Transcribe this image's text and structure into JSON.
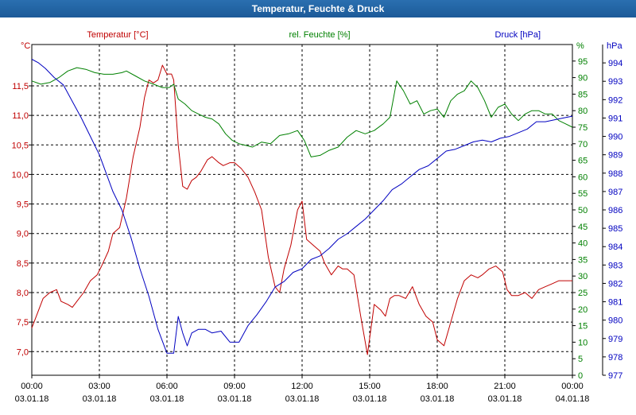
{
  "window": {
    "title": "Temperatur, Feuchte & Druck"
  },
  "chart_data": {
    "type": "line",
    "title": "Temperatur, Feuchte & Druck",
    "x_labels": [
      {
        "time": "00:00",
        "date": "03.01.18",
        "hour": 0
      },
      {
        "time": "03:00",
        "date": "03.01.18",
        "hour": 3
      },
      {
        "time": "06:00",
        "date": "03.01.18",
        "hour": 6
      },
      {
        "time": "09:00",
        "date": "03.01.18",
        "hour": 9
      },
      {
        "time": "12:00",
        "date": "03.01.18",
        "hour": 12
      },
      {
        "time": "15:00",
        "date": "03.01.18",
        "hour": 15
      },
      {
        "time": "18:00",
        "date": "03.01.18",
        "hour": 18
      },
      {
        "time": "21:00",
        "date": "03.01.18",
        "hour": 21
      },
      {
        "time": "00:00",
        "date": "04.01.18",
        "hour": 24
      }
    ],
    "xlim": [
      0,
      24
    ],
    "axes": {
      "temperature": {
        "title": "Temperatur [°C]",
        "unit_label": "°C",
        "color": "#c00000",
        "ylim": [
          6.6,
          12.2
        ],
        "ticks": [
          "7,0",
          "7,5",
          "8,0",
          "8,5",
          "9,0",
          "9,5",
          "10,0",
          "10,5",
          "11,0",
          "11,5"
        ],
        "tick_values": [
          7.0,
          7.5,
          8.0,
          8.5,
          9.0,
          9.5,
          10.0,
          10.5,
          11.0,
          11.5
        ]
      },
      "humidity": {
        "title": "rel. Feuchte [%]",
        "unit_label": "%",
        "color": "#008000",
        "ylim": [
          0,
          100
        ],
        "ticks": [
          "0",
          "5",
          "10",
          "15",
          "20",
          "25",
          "30",
          "35",
          "40",
          "45",
          "50",
          "55",
          "60",
          "65",
          "70",
          "75",
          "80",
          "85",
          "90",
          "95"
        ],
        "tick_values": [
          0,
          5,
          10,
          15,
          20,
          25,
          30,
          35,
          40,
          45,
          50,
          55,
          60,
          65,
          70,
          75,
          80,
          85,
          90,
          95
        ]
      },
      "pressure": {
        "title": "Druck [hPa]",
        "unit_label": "hPa",
        "color": "#0000c0",
        "ylim": [
          977,
          995
        ],
        "ticks": [
          "977",
          "978",
          "979",
          "980",
          "981",
          "982",
          "983",
          "984",
          "985",
          "986",
          "987",
          "988",
          "989",
          "990",
          "991",
          "992",
          "993",
          "994"
        ],
        "tick_values": [
          977,
          978,
          979,
          980,
          981,
          982,
          983,
          984,
          985,
          986,
          987,
          988,
          989,
          990,
          991,
          992,
          993,
          994
        ]
      }
    },
    "series": [
      {
        "name": "Temperatur",
        "axis": "temperature",
        "color": "#c00000",
        "x": [
          0,
          0.3,
          0.5,
          0.8,
          1.1,
          1.3,
          1.6,
          1.8,
          2.0,
          2.3,
          2.6,
          2.9,
          3.1,
          3.4,
          3.6,
          3.9,
          4.2,
          4.5,
          4.8,
          5.0,
          5.2,
          5.4,
          5.6,
          5.8,
          6.0,
          6.2,
          6.3,
          6.5,
          6.7,
          6.9,
          7.1,
          7.3,
          7.5,
          7.8,
          8.0,
          8.3,
          8.5,
          8.8,
          9.0,
          9.3,
          9.6,
          9.9,
          10.2,
          10.5,
          10.8,
          11.0,
          11.2,
          11.5,
          11.8,
          12.0,
          12.2,
          12.5,
          12.8,
          13.0,
          13.3,
          13.6,
          13.8,
          14.0,
          14.3,
          14.6,
          14.9,
          15.2,
          15.5,
          15.7,
          15.9,
          16.1,
          16.3,
          16.6,
          16.9,
          17.2,
          17.5,
          17.8,
          18.0,
          18.3,
          18.6,
          18.9,
          19.2,
          19.5,
          19.8,
          20.0,
          20.3,
          20.6,
          20.9,
          21.1,
          21.3,
          21.6,
          21.9,
          22.2,
          22.5,
          22.8,
          23.1,
          23.4,
          23.7,
          24.0
        ],
        "values": [
          7.4,
          7.7,
          7.9,
          8.0,
          8.05,
          7.85,
          7.8,
          7.75,
          7.85,
          8.0,
          8.2,
          8.3,
          8.45,
          8.7,
          9.0,
          9.1,
          9.6,
          10.3,
          10.8,
          11.3,
          11.6,
          11.55,
          11.6,
          11.85,
          11.7,
          11.7,
          11.6,
          10.5,
          9.8,
          9.75,
          9.9,
          9.95,
          10.05,
          10.25,
          10.3,
          10.2,
          10.15,
          10.2,
          10.2,
          10.1,
          9.95,
          9.7,
          9.4,
          8.6,
          8.1,
          8.0,
          8.4,
          8.8,
          9.4,
          9.55,
          8.9,
          8.8,
          8.7,
          8.5,
          8.3,
          8.45,
          8.4,
          8.4,
          8.3,
          7.6,
          6.95,
          7.8,
          7.7,
          7.6,
          7.9,
          7.95,
          7.95,
          7.9,
          8.1,
          7.8,
          7.6,
          7.5,
          7.2,
          7.1,
          7.5,
          7.9,
          8.2,
          8.3,
          8.25,
          8.3,
          8.4,
          8.45,
          8.35,
          8.05,
          7.95,
          7.95,
          8.0,
          7.9,
          8.05,
          8.1,
          8.15,
          8.2,
          8.2,
          8.2
        ],
        "label": "Temperatur"
      },
      {
        "name": "rel. Feuchte",
        "axis": "humidity",
        "color": "#008000",
        "x": [
          0,
          0.4,
          0.8,
          1.2,
          1.6,
          2.0,
          2.4,
          2.8,
          3.2,
          3.6,
          4.0,
          4.2,
          4.6,
          5.0,
          5.4,
          5.8,
          6.1,
          6.3,
          6.5,
          6.8,
          7.1,
          7.4,
          7.7,
          8.0,
          8.3,
          8.6,
          8.9,
          9.2,
          9.5,
          9.8,
          10.2,
          10.6,
          11.0,
          11.4,
          11.8,
          12.1,
          12.4,
          12.8,
          13.2,
          13.6,
          14.0,
          14.4,
          14.8,
          15.2,
          15.6,
          15.9,
          16.2,
          16.5,
          16.8,
          17.1,
          17.4,
          17.7,
          18.0,
          18.3,
          18.6,
          18.9,
          19.2,
          19.5,
          19.8,
          20.1,
          20.4,
          20.7,
          21.0,
          21.3,
          21.6,
          21.9,
          22.2,
          22.5,
          22.8,
          23.1,
          23.4,
          23.7,
          24.0
        ],
        "values": [
          89,
          88,
          88.5,
          90,
          92,
          93,
          92.5,
          91.5,
          91,
          91,
          91.5,
          92,
          90.5,
          89,
          88,
          87,
          87,
          88,
          83.5,
          82,
          80,
          79,
          78,
          77.5,
          76,
          73,
          71,
          70,
          69.5,
          69,
          70.5,
          70,
          72.5,
          73,
          74,
          71,
          66,
          66.5,
          68,
          69,
          72,
          74,
          73,
          74,
          76,
          78,
          89,
          86,
          82,
          83,
          79,
          80,
          80.5,
          78,
          83,
          85,
          86,
          89,
          87,
          83,
          78,
          81,
          82,
          79,
          77,
          79,
          80,
          80,
          79,
          79,
          77,
          76,
          75
        ],
        "label": "rel. Feuchte"
      },
      {
        "name": "Druck",
        "axis": "pressure",
        "color": "#0000c0",
        "x": [
          0,
          0.3,
          0.6,
          1.0,
          1.4,
          1.8,
          2.2,
          2.6,
          3.0,
          3.3,
          3.6,
          4.0,
          4.4,
          4.8,
          5.2,
          5.6,
          6.0,
          6.3,
          6.5,
          6.7,
          6.9,
          7.1,
          7.4,
          7.7,
          8.0,
          8.4,
          8.8,
          9.2,
          9.6,
          10.0,
          10.4,
          10.8,
          11.2,
          11.6,
          12.0,
          12.4,
          12.8,
          13.2,
          13.6,
          14.0,
          14.4,
          14.8,
          15.2,
          15.6,
          16.0,
          16.4,
          16.8,
          17.2,
          17.6,
          18.0,
          18.4,
          18.8,
          19.2,
          19.6,
          20.0,
          20.4,
          20.8,
          21.2,
          21.6,
          22.0,
          22.4,
          22.8,
          23.2,
          23.6,
          24.0
        ],
        "values": [
          994.2,
          994,
          993.7,
          993.2,
          992.8,
          991.9,
          991,
          990,
          989,
          988,
          987,
          986,
          984.5,
          982.8,
          981.3,
          979.5,
          978.2,
          978.2,
          980.2,
          979.3,
          978.6,
          979.3,
          979.5,
          979.5,
          979.3,
          979.4,
          978.8,
          978.8,
          979.7,
          980.3,
          981.0,
          981.8,
          982.1,
          982.6,
          982.8,
          983.3,
          983.5,
          983.9,
          984.4,
          984.7,
          985.1,
          985.5,
          986.0,
          986.5,
          987.1,
          987.4,
          987.8,
          988.2,
          988.4,
          988.8,
          989.2,
          989.3,
          989.5,
          989.7,
          989.8,
          989.7,
          989.9,
          990.0,
          990.2,
          990.4,
          990.8,
          990.8,
          990.9,
          991.0,
          991.1
        ],
        "label": "Druck"
      }
    ],
    "grid": true
  }
}
